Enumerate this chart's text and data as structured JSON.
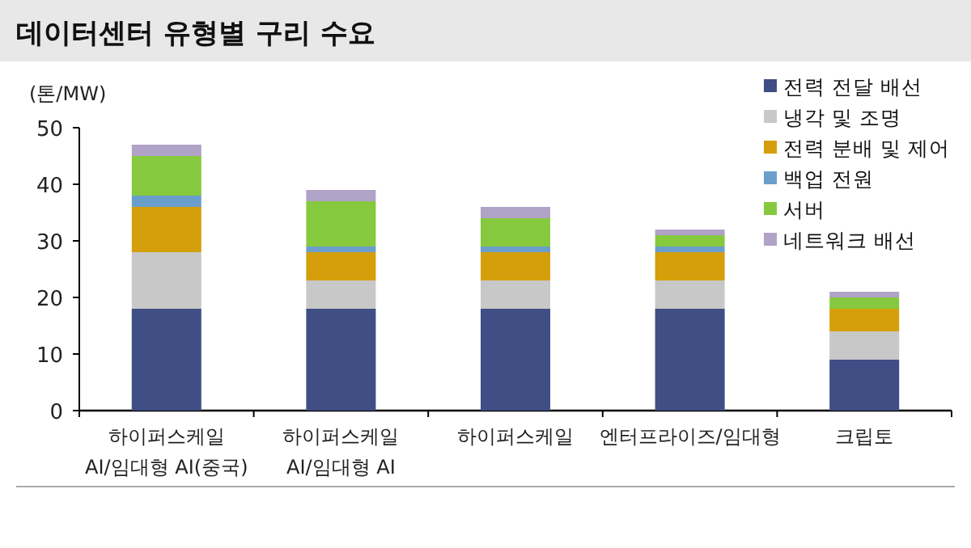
{
  "chart_data": {
    "type": "bar",
    "stacked": true,
    "title": "데이터센터 유형별 구리 수요",
    "ylabel": "(톤/MW)",
    "categories": [
      "하이퍼스케일\nAI/임대형 AI(중국)",
      "하이퍼스케일\nAI/임대형 AI",
      "하이퍼스케일",
      "엔터프라이즈/임대형",
      "크립토"
    ],
    "series": [
      {
        "name": "전력 전달 배선",
        "color": "#3f4e84",
        "values": [
          18,
          18,
          18,
          18,
          9
        ]
      },
      {
        "name": "냉각 및 조명",
        "color": "#c8c8c8",
        "values": [
          10,
          5,
          5,
          5,
          5
        ]
      },
      {
        "name": "전력 분배 및 제어",
        "color": "#d59f0b",
        "values": [
          8,
          5,
          5,
          5,
          4
        ]
      },
      {
        "name": "백업 전원",
        "color": "#6a9fcc",
        "values": [
          2,
          1,
          1,
          1,
          0
        ]
      },
      {
        "name": "서버",
        "color": "#86c93e",
        "values": [
          7,
          8,
          5,
          2,
          2
        ]
      },
      {
        "name": "네트워크 배선",
        "color": "#b1a2c8",
        "values": [
          2,
          2,
          2,
          1,
          1
        ]
      }
    ],
    "ylim": [
      0,
      50
    ],
    "yticks": [
      0,
      10,
      20,
      30,
      40,
      50
    ],
    "legend": "top right"
  }
}
